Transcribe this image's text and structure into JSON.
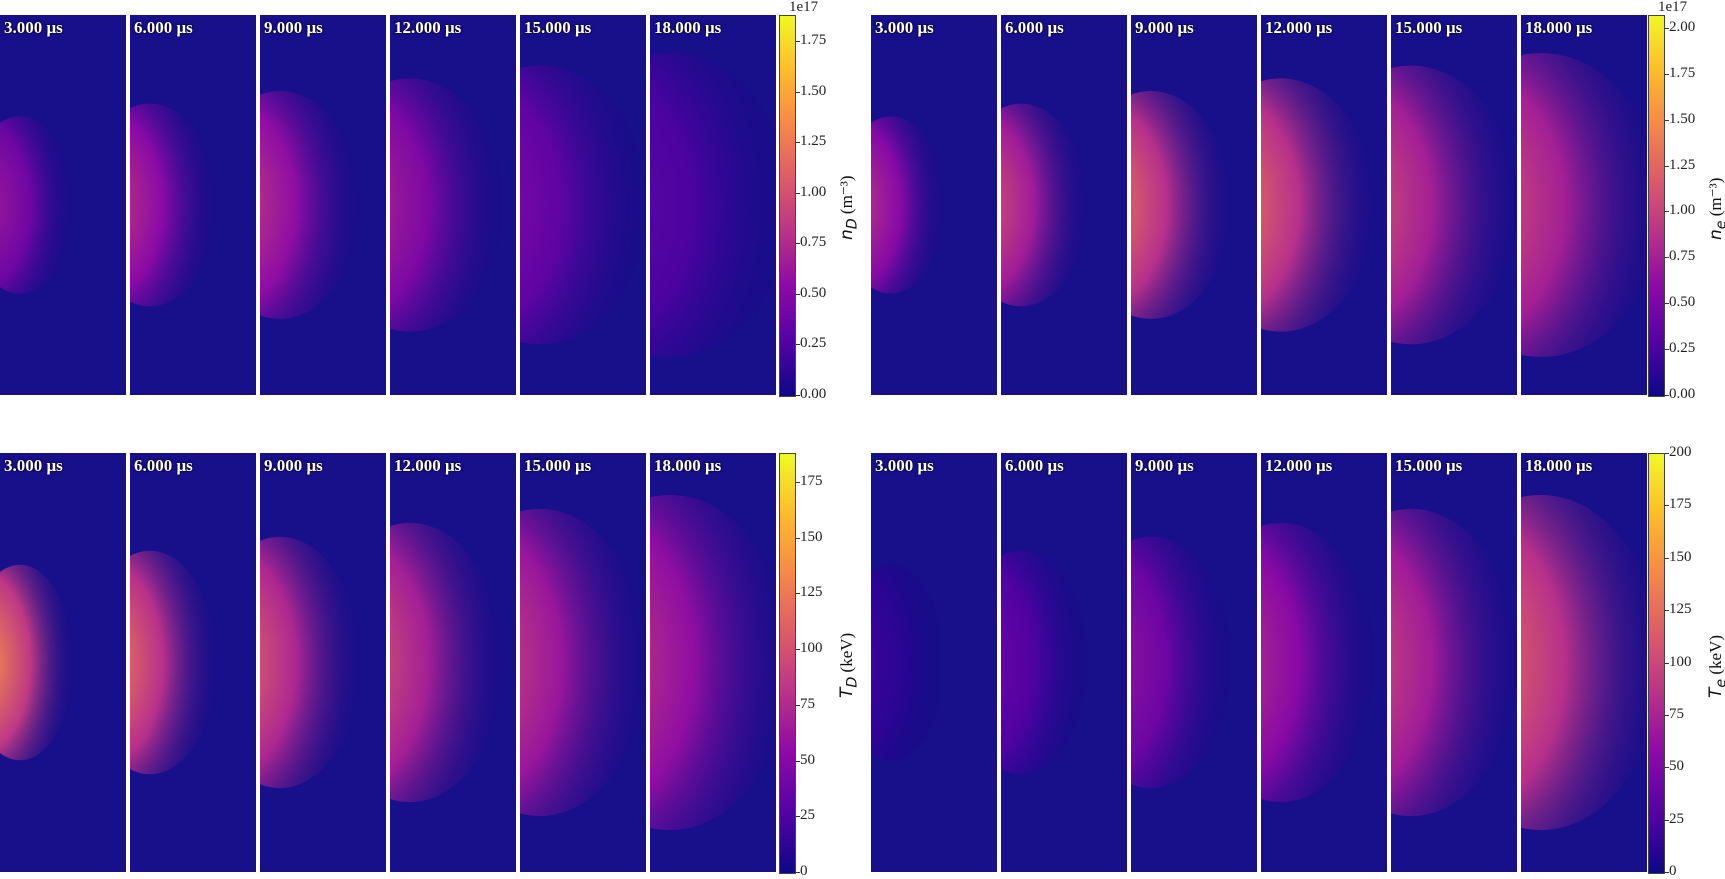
{
  "chart_data": [
    {
      "type": "heatmap",
      "frames": [
        "3.000 μs",
        "6.000 μs",
        "9.000 μs",
        "12.000 μs",
        "15.000 μs",
        "18.000 μs"
      ],
      "colormap": "plasma",
      "colorbar_label_symbol": "n",
      "colorbar_label_sub": "D",
      "colorbar_label_unit": "(m⁻³)",
      "colorbar_exponent": "1e17",
      "colorbar_ticks": [
        "0.00",
        "0.25",
        "0.50",
        "0.75",
        "1.00",
        "1.25",
        "1.50",
        "1.75"
      ],
      "colorbar_range": [
        0,
        1.88
      ]
    },
    {
      "type": "heatmap",
      "frames": [
        "3.000 μs",
        "6.000 μs",
        "9.000 μs",
        "12.000 μs",
        "15.000 μs",
        "18.000 μs"
      ],
      "colormap": "plasma",
      "colorbar_label_symbol": "n",
      "colorbar_label_sub": "e",
      "colorbar_label_unit": "(m⁻³)",
      "colorbar_exponent": "1e17",
      "colorbar_ticks": [
        "0.00",
        "0.25",
        "0.50",
        "0.75",
        "1.00",
        "1.25",
        "1.50",
        "1.75",
        "2.00"
      ],
      "colorbar_range": [
        0,
        2.07
      ]
    },
    {
      "type": "heatmap",
      "frames": [
        "3.000 μs",
        "6.000 μs",
        "9.000 μs",
        "12.000 μs",
        "15.000 μs",
        "18.000 μs"
      ],
      "colormap": "plasma",
      "colorbar_label_symbol": "T",
      "colorbar_label_sub": "D",
      "colorbar_label_unit": "(keV)",
      "colorbar_exponent": "",
      "colorbar_ticks": [
        "0",
        "25",
        "50",
        "75",
        "100",
        "125",
        "150",
        "175"
      ],
      "colorbar_range": [
        0,
        188
      ]
    },
    {
      "type": "heatmap",
      "frames": [
        "3.000 μs",
        "6.000 μs",
        "9.000 μs",
        "12.000 μs",
        "15.000 μs",
        "18.000 μs"
      ],
      "colormap": "plasma",
      "colorbar_label_symbol": "T",
      "colorbar_label_sub": "e",
      "colorbar_label_unit": "(keV)",
      "colorbar_exponent": "",
      "colorbar_ticks": [
        "0",
        "25",
        "50",
        "75",
        "100",
        "125",
        "150",
        "175",
        "200"
      ],
      "colorbar_range": [
        0,
        200
      ]
    }
  ]
}
